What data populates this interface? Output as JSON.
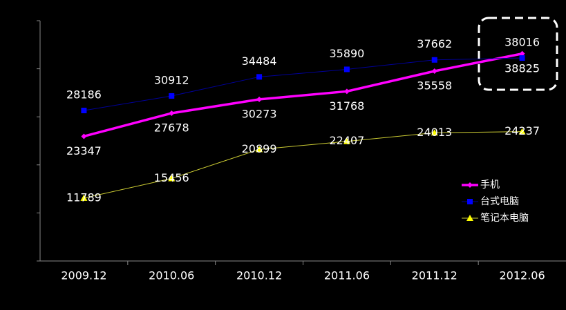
{
  "chart_data": {
    "type": "line",
    "categories": [
      "2009.12",
      "2010.06",
      "2010.12",
      "2011.06",
      "2011.12",
      "2012.06"
    ],
    "series": [
      {
        "name": "手机",
        "color": "#ff00ff",
        "values": [
          23347,
          27678,
          30273,
          31768,
          35558,
          38825
        ]
      },
      {
        "name": "台式电脑",
        "color": "#0000ff",
        "values": [
          28186,
          30912,
          34484,
          35890,
          37662,
          38016
        ]
      },
      {
        "name": "笔记本电脑",
        "color": "#ffff00",
        "values": [
          11789,
          15456,
          20899,
          22407,
          24013,
          24237
        ]
      }
    ],
    "ylim": [
      0,
      45000
    ],
    "yticks": [
      0,
      9000,
      18000,
      27000,
      36000,
      45000
    ]
  }
}
